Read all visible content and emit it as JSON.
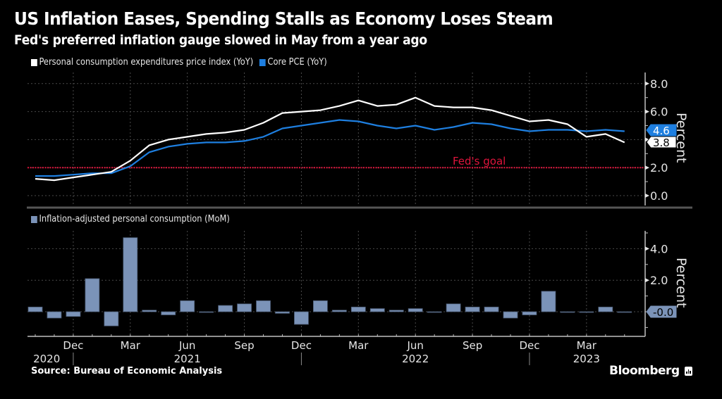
{
  "header": {
    "title": "US Inflation Eases, Spending Stalls as Economy Loses Steam",
    "subtitle": "Fed's preferred inflation gauge slowed in May from a year ago"
  },
  "footer": {
    "source": "Source: Bureau of Economic Analysis",
    "brand": "Bloomberg"
  },
  "colors": {
    "background": "#000000",
    "pce": "#ffffff",
    "core_pce": "#1e7fe0",
    "consumption": "#7b93b8",
    "fed_goal": "#e0143c",
    "grid": "#555555",
    "axis": "#bfbfbf"
  },
  "chart_data": [
    {
      "type": "line",
      "title": "Fed's preferred inflation gauge slowed in May from a year ago",
      "ylabel": "Percent",
      "ylim": [
        -0.7,
        8.8
      ],
      "yticks": [
        "8.0",
        "6.0",
        "4.0",
        "2.0",
        "0.0"
      ],
      "ytick_values": [
        8,
        6,
        4,
        2,
        0
      ],
      "grid": true,
      "legend_placement": "top-left",
      "x": [
        "Oct 2020",
        "Nov 2020",
        "Dec 2020",
        "Jan 2021",
        "Feb 2021",
        "Mar 2021",
        "Apr 2021",
        "May 2021",
        "Jun 2021",
        "Jul 2021",
        "Aug 2021",
        "Sep 2021",
        "Oct 2021",
        "Nov 2021",
        "Dec 2021",
        "Jan 2022",
        "Feb 2022",
        "Mar 2022",
        "Apr 2022",
        "May 2022",
        "Jun 2022",
        "Jul 2022",
        "Aug 2022",
        "Sep 2022",
        "Oct 2022",
        "Nov 2022",
        "Dec 2022",
        "Jan 2023",
        "Feb 2023",
        "Mar 2023",
        "Apr 2023",
        "May 2023"
      ],
      "series": [
        {
          "name": "Personal consumption expenditures price index (YoY)",
          "color": "#ffffff",
          "values": [
            1.2,
            1.1,
            1.3,
            1.5,
            1.7,
            2.5,
            3.6,
            4.0,
            4.2,
            4.4,
            4.5,
            4.7,
            5.2,
            5.9,
            6.0,
            6.1,
            6.4,
            6.8,
            6.4,
            6.5,
            7.0,
            6.4,
            6.3,
            6.3,
            6.1,
            5.7,
            5.3,
            5.4,
            5.1,
            4.2,
            4.4,
            3.8
          ],
          "last_value_label": "3.8"
        },
        {
          "name": "Core PCE (YoY)",
          "color": "#1e7fe0",
          "values": [
            1.4,
            1.4,
            1.5,
            1.6,
            1.6,
            2.1,
            3.1,
            3.5,
            3.7,
            3.8,
            3.8,
            3.9,
            4.2,
            4.8,
            5.0,
            5.2,
            5.4,
            5.3,
            5.0,
            4.8,
            5.0,
            4.7,
            4.9,
            5.2,
            5.1,
            4.8,
            4.6,
            4.7,
            4.7,
            4.6,
            4.7,
            4.6
          ],
          "last_value_label": "4.6"
        }
      ],
      "reference_line": {
        "value": 2.0,
        "label": "Fed's goal",
        "color": "#e0143c"
      }
    },
    {
      "type": "bar",
      "ylabel": "Percent",
      "ylim": [
        -1.6,
        5.3
      ],
      "yticks": [
        "4.0",
        "2.0"
      ],
      "ytick_values": [
        4,
        2
      ],
      "grid": true,
      "legend_placement": "top-left",
      "x": [
        "Oct 2020",
        "Nov 2020",
        "Dec 2020",
        "Jan 2021",
        "Feb 2021",
        "Mar 2021",
        "Apr 2021",
        "May 2021",
        "Jun 2021",
        "Jul 2021",
        "Aug 2021",
        "Sep 2021",
        "Oct 2021",
        "Nov 2021",
        "Dec 2021",
        "Jan 2022",
        "Feb 2022",
        "Mar 2022",
        "Apr 2022",
        "May 2022",
        "Jun 2022",
        "Jul 2022",
        "Aug 2022",
        "Sep 2022",
        "Oct 2022",
        "Nov 2022",
        "Dec 2022",
        "Jan 2023",
        "Feb 2023",
        "Mar 2023",
        "Apr 2023",
        "May 2023"
      ],
      "series": [
        {
          "name": "Inflation-adjusted personal consumption (MoM)",
          "color": "#7b93b8",
          "values": [
            0.3,
            -0.4,
            -0.3,
            2.1,
            -0.9,
            4.7,
            0.1,
            -0.2,
            0.7,
            0.0,
            0.4,
            0.5,
            0.7,
            -0.1,
            -0.8,
            0.7,
            0.1,
            0.3,
            0.2,
            0.1,
            0.2,
            0.0,
            0.5,
            0.3,
            0.3,
            -0.4,
            -0.2,
            1.3,
            0.0,
            0.0,
            0.3,
            0.0
          ],
          "last_value_label": "-0.0"
        }
      ]
    }
  ],
  "x_axis": {
    "month_labels": [
      {
        "label": "Dec",
        "index": 2
      },
      {
        "label": "Mar",
        "index": 5
      },
      {
        "label": "Jun",
        "index": 8
      },
      {
        "label": "Sep",
        "index": 11
      },
      {
        "label": "Dec",
        "index": 14
      },
      {
        "label": "Mar",
        "index": 17
      },
      {
        "label": "Jun",
        "index": 20
      },
      {
        "label": "Sep",
        "index": 23
      },
      {
        "label": "Dec",
        "index": 26
      },
      {
        "label": "Mar",
        "index": 29
      }
    ],
    "year_labels": [
      {
        "label": "2020",
        "index": 0.6
      },
      {
        "label": "2021",
        "index": 8
      },
      {
        "label": "2022",
        "index": 20
      },
      {
        "label": "2023",
        "index": 29
      }
    ],
    "year_dividers": [
      2.5,
      14.5,
      26.5
    ]
  }
}
